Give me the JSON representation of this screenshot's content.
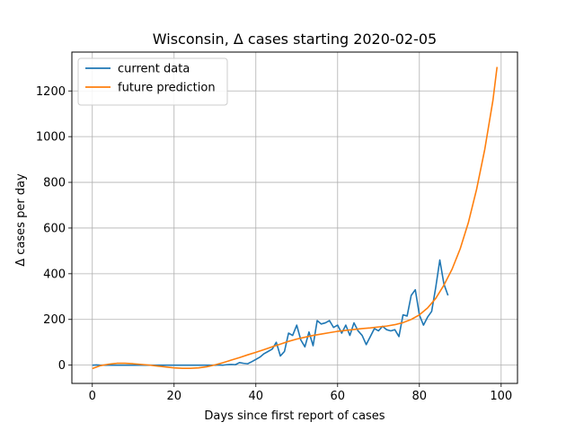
{
  "chart_data": {
    "type": "line",
    "title": "Wisconsin, Δ cases starting 2020-02-05",
    "xlabel": "Days since first report of cases",
    "ylabel": "Δ cases per day",
    "xlim": [
      -5,
      104
    ],
    "ylim": [
      -80,
      1370
    ],
    "xticks": [
      0,
      20,
      40,
      60,
      80,
      100
    ],
    "yticks": [
      0,
      200,
      400,
      600,
      800,
      1000,
      1200
    ],
    "grid": true,
    "legend_position": "top-left",
    "series": [
      {
        "name": "current data",
        "color": "#1f77b4",
        "x": [
          0,
          1,
          2,
          3,
          4,
          5,
          6,
          7,
          8,
          9,
          10,
          11,
          12,
          13,
          14,
          15,
          16,
          17,
          18,
          19,
          20,
          21,
          22,
          23,
          24,
          25,
          26,
          27,
          28,
          29,
          30,
          31,
          32,
          33,
          34,
          35,
          36,
          37,
          38,
          39,
          40,
          41,
          42,
          43,
          44,
          45,
          46,
          47,
          48,
          49,
          50,
          51,
          52,
          53,
          54,
          55,
          56,
          57,
          58,
          59,
          60,
          61,
          62,
          63,
          64,
          65,
          66,
          67,
          68,
          69,
          70,
          71,
          72,
          73,
          74,
          75,
          76,
          77,
          78,
          79,
          80,
          81,
          82,
          83,
          84,
          85,
          86,
          87
        ],
        "y": [
          0,
          1,
          0,
          0,
          0,
          0,
          0,
          0,
          0,
          0,
          0,
          0,
          0,
          0,
          0,
          0,
          0,
          0,
          0,
          0,
          0,
          0,
          0,
          0,
          0,
          0,
          0,
          0,
          0,
          0,
          0,
          1,
          0,
          2,
          3,
          2,
          11,
          8,
          6,
          15,
          25,
          35,
          50,
          60,
          70,
          100,
          40,
          60,
          140,
          130,
          175,
          110,
          80,
          145,
          85,
          195,
          180,
          185,
          195,
          165,
          175,
          140,
          175,
          130,
          185,
          150,
          130,
          90,
          125,
          160,
          150,
          170,
          155,
          150,
          155,
          125,
          220,
          215,
          305,
          330,
          220,
          175,
          210,
          235,
          340,
          460,
          355,
          305
        ]
      },
      {
        "name": "future prediction",
        "color": "#ff7f0e",
        "x": [
          0,
          2,
          4,
          6,
          8,
          10,
          12,
          14,
          16,
          18,
          20,
          22,
          24,
          26,
          28,
          30,
          32,
          34,
          36,
          38,
          40,
          42,
          44,
          46,
          48,
          50,
          52,
          54,
          56,
          58,
          60,
          62,
          64,
          66,
          68,
          70,
          72,
          74,
          76,
          78,
          80,
          82,
          84,
          86,
          88,
          90,
          92,
          94,
          96,
          98,
          99
        ],
        "y": [
          -15,
          -2,
          4,
          8,
          8,
          6,
          3,
          0,
          -4,
          -8,
          -12,
          -14,
          -14,
          -12,
          -7,
          1,
          11,
          22,
          33,
          45,
          56,
          68,
          80,
          92,
          104,
          114,
          122,
          130,
          136,
          142,
          148,
          152,
          156,
          160,
          163,
          167,
          171,
          177,
          186,
          200,
          220,
          250,
          292,
          350,
          420,
          510,
          625,
          770,
          945,
          1160,
          1305
        ]
      }
    ]
  }
}
